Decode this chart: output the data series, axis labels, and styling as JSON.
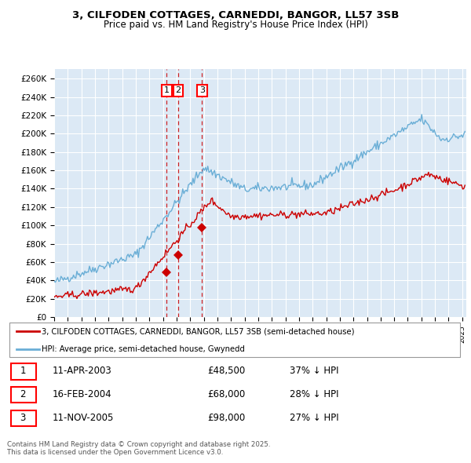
{
  "title_line1": "3, CILFODEN COTTAGES, CARNEDDI, BANGOR, LL57 3SB",
  "title_line2": "Price paid vs. HM Land Registry's House Price Index (HPI)",
  "ylim": [
    0,
    270000
  ],
  "yticks": [
    0,
    20000,
    40000,
    60000,
    80000,
    100000,
    120000,
    140000,
    160000,
    180000,
    200000,
    220000,
    240000,
    260000
  ],
  "ytick_labels": [
    "£0",
    "£20K",
    "£40K",
    "£60K",
    "£80K",
    "£100K",
    "£120K",
    "£140K",
    "£160K",
    "£180K",
    "£200K",
    "£220K",
    "£240K",
    "£260K"
  ],
  "hpi_color": "#6aaed6",
  "price_color": "#cc0000",
  "dashed_color": "#cc0000",
  "background_color": "#dce9f5",
  "grid_color": "#ffffff",
  "sale_dates": [
    2003.27,
    2004.12,
    2005.87
  ],
  "sale_prices": [
    48500,
    68000,
    98000
  ],
  "sale_labels": [
    "1",
    "2",
    "3"
  ],
  "legend_line1": "3, CILFODEN COTTAGES, CARNEDDI, BANGOR, LL57 3SB (semi-detached house)",
  "legend_line2": "HPI: Average price, semi-detached house, Gwynedd",
  "table_rows": [
    [
      "1",
      "11-APR-2003",
      "£48,500",
      "37% ↓ HPI"
    ],
    [
      "2",
      "16-FEB-2004",
      "£68,000",
      "28% ↓ HPI"
    ],
    [
      "3",
      "11-NOV-2005",
      "£98,000",
      "27% ↓ HPI"
    ]
  ],
  "footer": "Contains HM Land Registry data © Crown copyright and database right 2025.\nThis data is licensed under the Open Government Licence v3.0."
}
